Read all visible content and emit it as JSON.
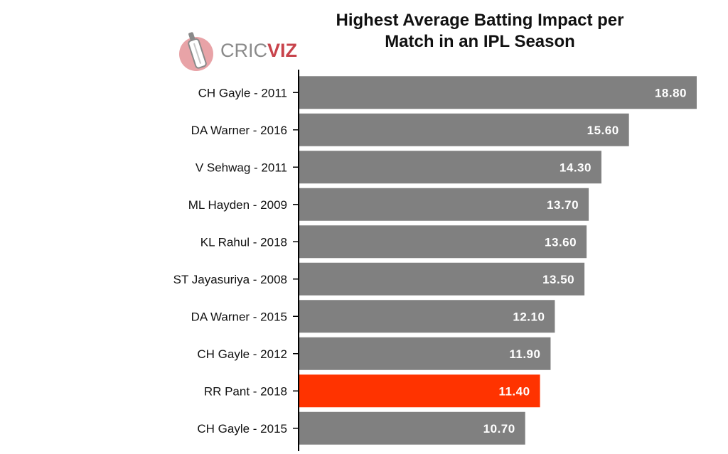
{
  "logo": {
    "text_light": "CRIC",
    "text_bold": "VIZ",
    "icon": "cricket-bat-logo-icon",
    "color": "#c8434b"
  },
  "chart_data": {
    "type": "bar",
    "orientation": "horizontal",
    "title": "Highest Average Batting Impact per Match in an IPL Season",
    "title_lines": [
      "Highest Average Batting Impact per",
      "Match in an IPL Season"
    ],
    "categories": [
      "CH Gayle - 2011",
      "DA Warner - 2016",
      "V Sehwag - 2011",
      "ML Hayden - 2009",
      "KL Rahul - 2018",
      "ST Jayasuriya - 2008",
      "DA Warner - 2015",
      "CH Gayle - 2012",
      "RR Pant - 2018",
      "CH Gayle - 2015"
    ],
    "values": [
      18.8,
      15.6,
      14.3,
      13.7,
      13.6,
      13.5,
      12.1,
      11.9,
      11.4,
      10.7
    ],
    "value_labels": [
      "18.80",
      "15.60",
      "14.30",
      "13.70",
      "13.60",
      "13.50",
      "12.10",
      "11.90",
      "11.40",
      "10.70"
    ],
    "highlight": "RR Pant - 2018",
    "xlim": [
      0,
      19
    ],
    "grid": false,
    "colors": {
      "bar": "#808080",
      "highlight": "#ff3300",
      "label": "#ffffff",
      "axis": "#000000"
    }
  }
}
